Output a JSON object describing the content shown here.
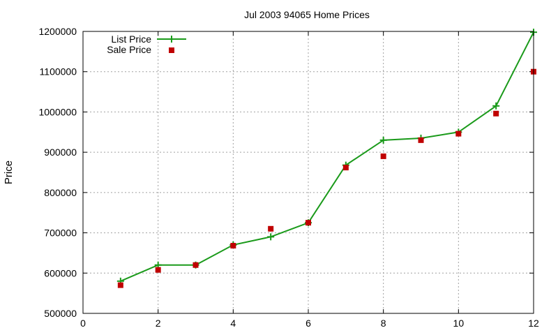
{
  "chart_data": {
    "type": "line",
    "title": "Jul 2003 94065 Home Prices",
    "xlabel": "",
    "ylabel": "Price",
    "xlim": [
      0,
      12
    ],
    "ylim": [
      500000,
      1200000
    ],
    "x_ticks": [
      0,
      2,
      4,
      6,
      8,
      10,
      12
    ],
    "y_ticks": [
      500000,
      600000,
      700000,
      800000,
      900000,
      1000000,
      1100000,
      1200000
    ],
    "x_tick_labels": [
      "0",
      "2",
      "4",
      "6",
      "8",
      "10",
      "12"
    ],
    "y_tick_labels": [
      "500000",
      "600000",
      "700000",
      "800000",
      "900000",
      "1000000",
      "1100000",
      "1200000"
    ],
    "grid": true,
    "legend_position": "top-left",
    "series": [
      {
        "name": "List Price",
        "style": "line-plus",
        "color": "#1a9a1a",
        "x": [
          1,
          2,
          3,
          4,
          5,
          6,
          7,
          8,
          9,
          10,
          11,
          12
        ],
        "y": [
          580000,
          620000,
          620000,
          670000,
          690000,
          725000,
          868000,
          930000,
          935000,
          950000,
          1015000,
          1198000
        ]
      },
      {
        "name": "Sale Price",
        "style": "square-points",
        "color": "#c00000",
        "x": [
          1,
          2,
          3,
          4,
          5,
          6,
          7,
          8,
          9,
          10,
          11,
          12
        ],
        "y": [
          570000,
          608000,
          620000,
          668000,
          710000,
          725000,
          862000,
          890000,
          930000,
          946000,
          996000,
          1100000
        ]
      }
    ]
  }
}
